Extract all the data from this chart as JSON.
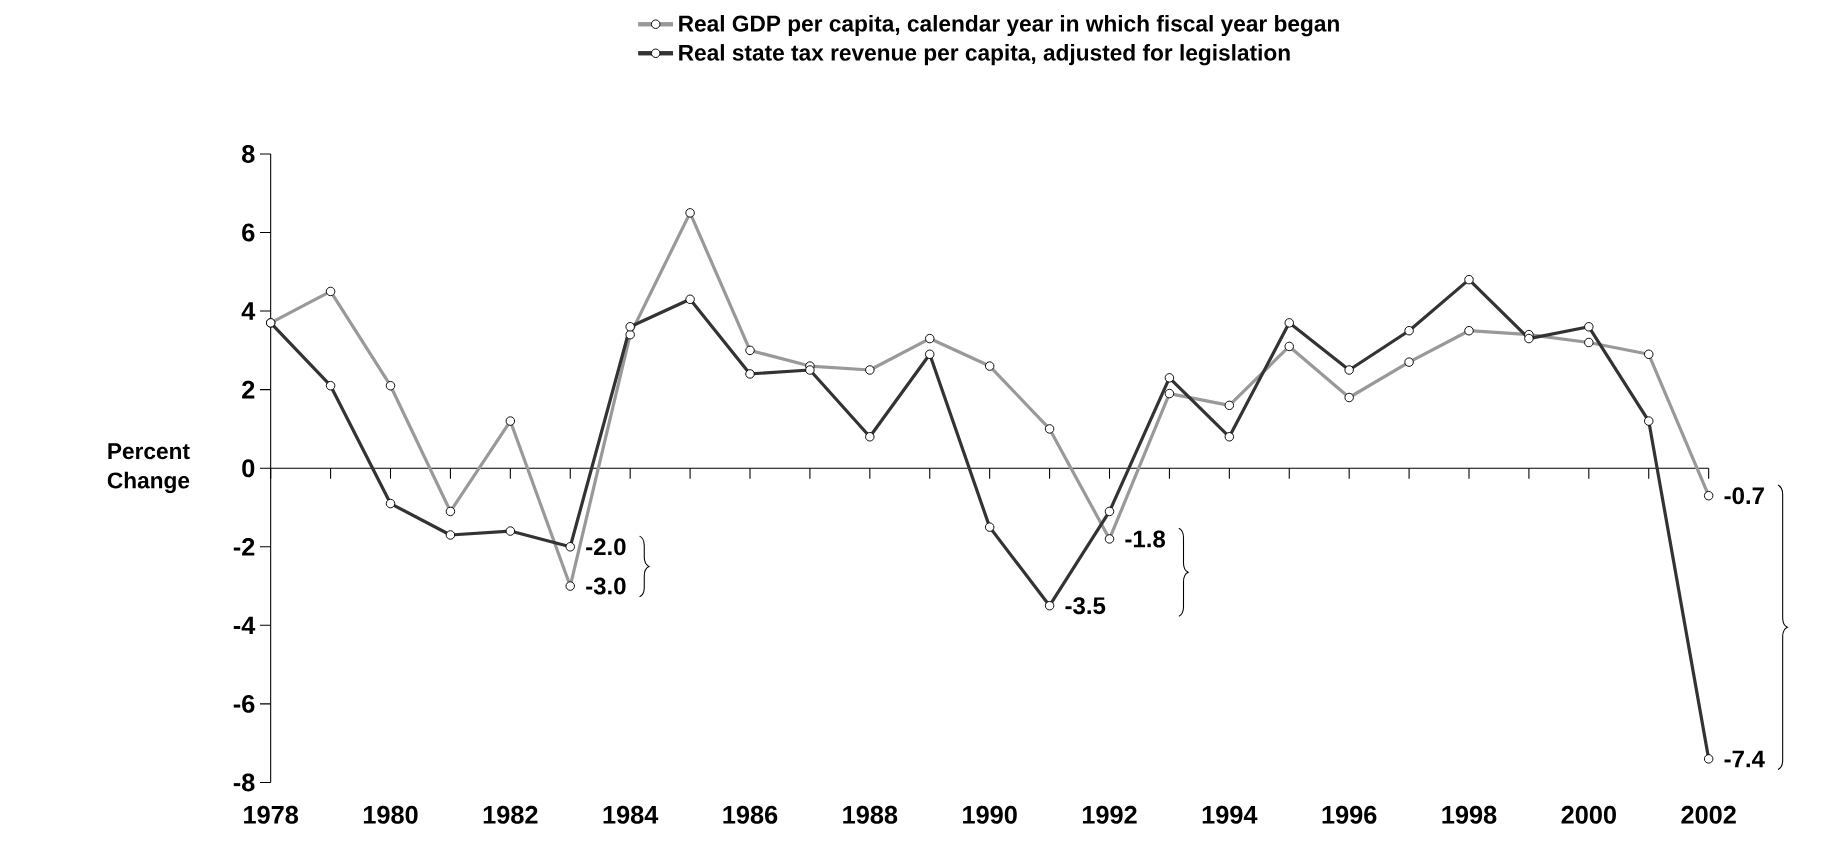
{
  "chart_data": {
    "type": "line",
    "x": [
      1978,
      1979,
      1980,
      1981,
      1982,
      1983,
      1984,
      1985,
      1986,
      1987,
      1988,
      1989,
      1990,
      1991,
      1992,
      1993,
      1994,
      1995,
      1996,
      1997,
      1998,
      1999,
      2000,
      2001,
      2002
    ],
    "series": [
      {
        "name": "Real GDP per capita, calendar year in which fiscal year began",
        "color": "#999999",
        "values": [
          3.7,
          4.5,
          2.1,
          -1.1,
          1.2,
          -3.0,
          3.4,
          6.5,
          3.0,
          2.6,
          2.5,
          3.3,
          2.6,
          1.0,
          -1.8,
          1.9,
          1.6,
          3.1,
          1.8,
          2.7,
          3.5,
          3.4,
          3.2,
          2.9,
          -0.7
        ],
        "value_labels": [
          null,
          null,
          null,
          null,
          null,
          "-3.0",
          null,
          null,
          null,
          null,
          null,
          null,
          null,
          null,
          "-1.8",
          null,
          null,
          null,
          null,
          null,
          null,
          null,
          null,
          null,
          "-0.7"
        ]
      },
      {
        "name": "Real state tax revenue per capita, adjusted for legislation",
        "color": "#333333",
        "values": [
          3.7,
          2.1,
          -0.9,
          -1.7,
          -1.6,
          -2.0,
          3.6,
          4.3,
          2.4,
          2.5,
          0.8,
          2.9,
          -1.5,
          -3.5,
          -1.1,
          2.3,
          0.8,
          3.7,
          2.5,
          3.5,
          4.8,
          3.3,
          3.6,
          1.2,
          -7.4
        ],
        "value_labels": [
          null,
          null,
          null,
          null,
          null,
          "-2.0",
          null,
          null,
          null,
          null,
          null,
          null,
          null,
          "-3.5",
          null,
          null,
          null,
          null,
          null,
          null,
          null,
          null,
          null,
          null,
          "-7.4"
        ]
      }
    ],
    "ylabel": "Percent Change",
    "xlim": [
      1978,
      2002
    ],
    "xticks": [
      1978,
      {
        "value": 1979,
        "label": null
      },
      1980,
      {
        "value": 1981,
        "label": null
      },
      1982,
      {
        "value": 1983,
        "label": null
      },
      1984,
      {
        "value": 1985,
        "label": null
      },
      1986,
      {
        "value": 1987,
        "label": null
      },
      1988,
      {
        "value": 1989,
        "label": null
      },
      1990,
      {
        "value": 1991,
        "label": null
      },
      1992,
      {
        "value": 1993,
        "label": null
      },
      1994,
      {
        "value": 1995,
        "label": null
      },
      1996,
      {
        "value": 1997,
        "label": null
      },
      1998,
      {
        "value": 1999,
        "label": null
      },
      2000,
      {
        "value": 2001,
        "label": null
      },
      2002
    ],
    "ylim": [
      -8,
      8
    ],
    "yticks": [
      -8,
      -6,
      -4,
      -2,
      0,
      2,
      4,
      6,
      8
    ],
    "legend": "top",
    "marker": "circle",
    "line_style": "solid"
  }
}
